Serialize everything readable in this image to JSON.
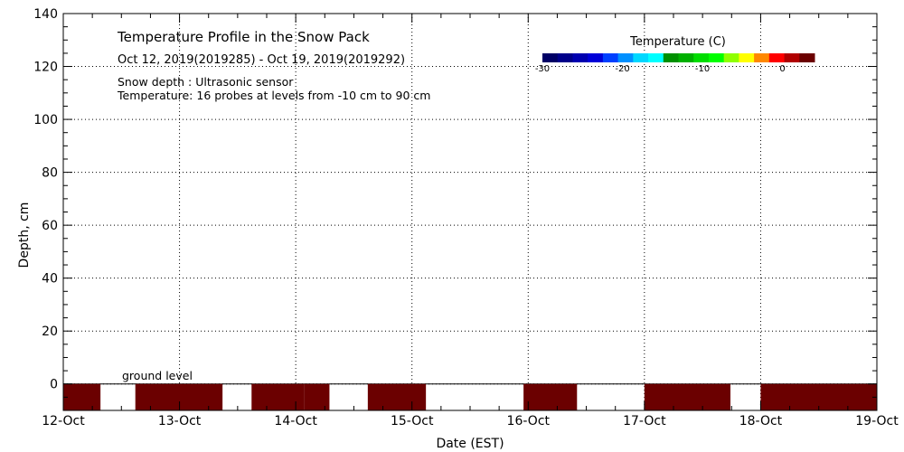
{
  "chart_data": {
    "type": "heatmap",
    "title": "Temperature Profile in the Snow Pack",
    "subtitle": "Oct 12, 2019(2019285) - Oct 19, 2019(2019292)",
    "notes": [
      "Snow depth : Ultrasonic sensor",
      "Temperature: 16 probes at levels from -10 cm to 90 cm"
    ],
    "xlabel": "Date (EST)",
    "ylabel": "Depth, cm",
    "x_ticks": [
      "12-Oct",
      "13-Oct",
      "14-Oct",
      "15-Oct",
      "16-Oct",
      "17-Oct",
      "18-Oct",
      "19-Oct"
    ],
    "x_range_days": [
      0,
      7
    ],
    "ylim": [
      -10,
      140
    ],
    "y_ticks": [
      0,
      20,
      40,
      60,
      80,
      100,
      120,
      140
    ],
    "grid": true,
    "ground_level_label": "ground level",
    "ground_level_depth": 0,
    "soil_layer": {
      "depth_range": [
        -10,
        0
      ],
      "segments_days": [
        [
          0.0,
          0.32
        ],
        [
          0.62,
          1.37
        ],
        [
          1.62,
          2.07
        ],
        [
          2.07,
          2.29
        ],
        [
          2.62,
          3.12
        ],
        [
          3.96,
          4.42
        ],
        [
          5.0,
          5.74
        ],
        [
          6.0,
          7.0
        ]
      ],
      "color": "#6b0000"
    },
    "colorbar": {
      "title": "Temperature (C)",
      "ticks": [
        "-30",
        "-20",
        "-10",
        "0"
      ],
      "range": [
        -30,
        4
      ],
      "colors": [
        "#000066",
        "#00008a",
        "#0000b0",
        "#0000d8",
        "#0040ff",
        "#0090ff",
        "#00d8ff",
        "#00ffff",
        "#009000",
        "#00b000",
        "#00dd00",
        "#00ff00",
        "#90ff00",
        "#ffff00",
        "#ff8800",
        "#ff0000",
        "#b00000",
        "#6b0000"
      ]
    }
  }
}
